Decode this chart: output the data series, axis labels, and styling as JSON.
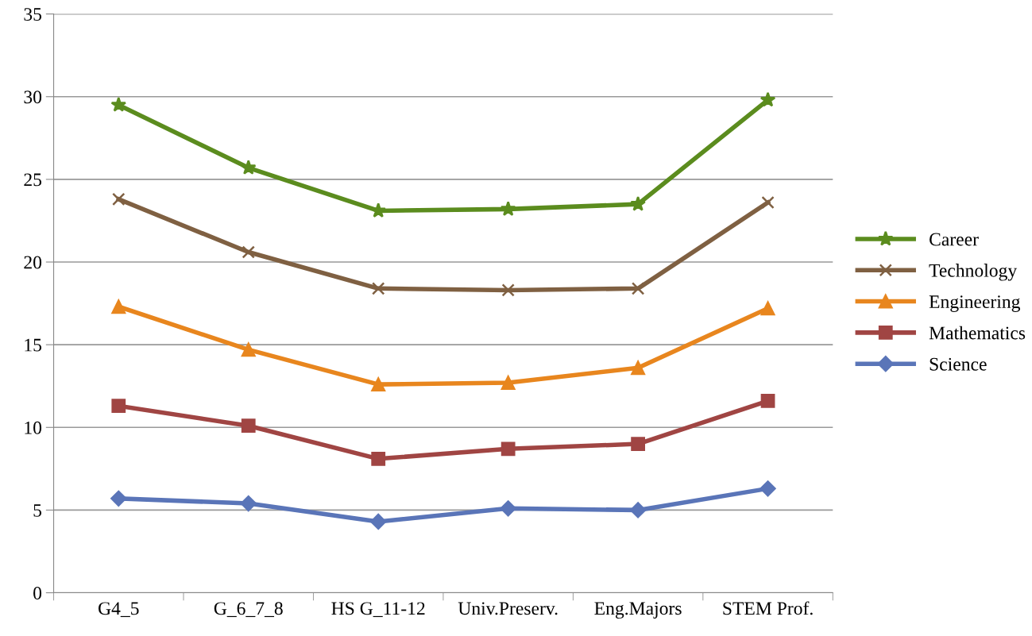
{
  "chart_data": {
    "type": "line",
    "categories": [
      "G4_5",
      "G_6_7_8",
      "HS G_11-12",
      "Univ.Preserv.",
      "Eng.Majors",
      "STEM Prof."
    ],
    "series": [
      {
        "name": "Career",
        "color": "#5b8c1e",
        "marker": "star",
        "values": [
          29.5,
          25.7,
          23.1,
          23.2,
          23.5,
          29.8
        ]
      },
      {
        "name": "Technology",
        "color": "#7f6042",
        "marker": "cross",
        "values": [
          23.8,
          20.6,
          18.4,
          18.3,
          18.4,
          23.6
        ]
      },
      {
        "name": "Engineering",
        "color": "#e8861e",
        "marker": "triangle",
        "values": [
          17.3,
          14.7,
          12.6,
          12.7,
          13.6,
          17.2
        ]
      },
      {
        "name": "Mathematics",
        "color": "#a04543",
        "marker": "square",
        "values": [
          11.3,
          10.1,
          8.1,
          8.7,
          9.0,
          11.6
        ]
      },
      {
        "name": "Science",
        "color": "#5a75b8",
        "marker": "diamond",
        "values": [
          5.7,
          5.4,
          4.3,
          5.1,
          5.0,
          6.3
        ]
      }
    ],
    "ylim": [
      0,
      35
    ],
    "yticks": [
      0,
      5,
      10,
      15,
      20,
      25,
      30,
      35
    ],
    "grid": "y",
    "legend": "right",
    "line_style": "solid"
  }
}
